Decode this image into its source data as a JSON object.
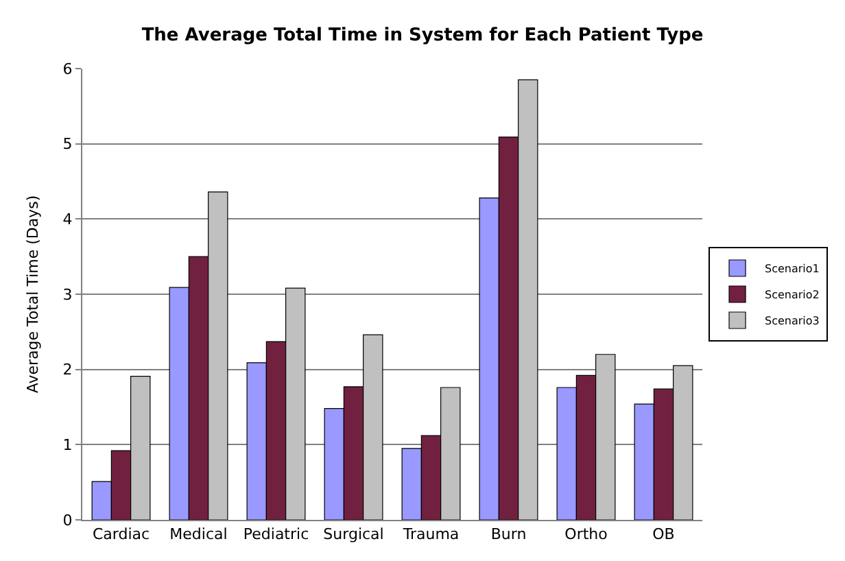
{
  "chart_data": {
    "type": "bar",
    "title": "The Average Total Time in System for Each Patient Type",
    "ylabel": "Average Total Time (Days)",
    "categories": [
      "Cardiac",
      "Medical",
      "Pediatric",
      "Surgical",
      "Trauma",
      "Burn",
      "Ortho",
      "OB"
    ],
    "series": [
      {
        "name": "Scenario1",
        "color": "#9999ff",
        "values": [
          0.51,
          3.09,
          2.09,
          1.48,
          0.95,
          4.28,
          1.76,
          1.54
        ]
      },
      {
        "name": "Scenario2",
        "color": "#722040",
        "values": [
          0.92,
          3.5,
          2.37,
          1.77,
          1.12,
          5.09,
          1.92,
          1.74
        ]
      },
      {
        "name": "Scenario3",
        "color": "#c0c0c0",
        "values": [
          1.91,
          4.36,
          3.08,
          2.46,
          1.76,
          5.85,
          2.2,
          2.05
        ]
      }
    ],
    "ylim": [
      0,
      6
    ],
    "yticks": [
      0,
      1,
      2,
      3,
      4,
      5,
      6
    ],
    "grid": "y",
    "legend": "right"
  }
}
